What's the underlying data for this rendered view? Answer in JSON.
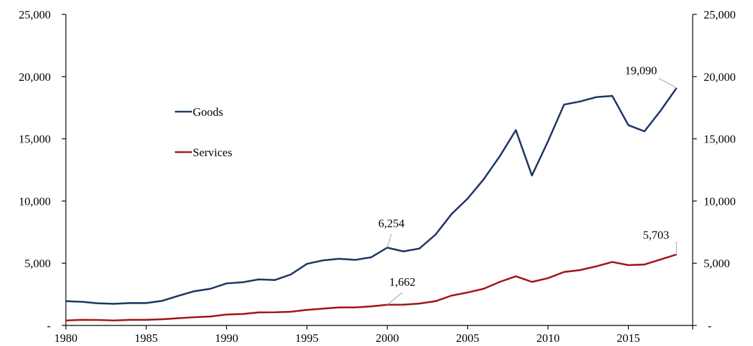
{
  "chart_data": {
    "type": "line",
    "title": "",
    "xlabel": "",
    "ylabel": "",
    "x": [
      1980,
      1981,
      1982,
      1983,
      1984,
      1985,
      1986,
      1987,
      1988,
      1989,
      1990,
      1991,
      1992,
      1993,
      1994,
      1995,
      1996,
      1997,
      1998,
      1999,
      2000,
      2001,
      2002,
      2003,
      2004,
      2005,
      2006,
      2007,
      2008,
      2009,
      2010,
      2011,
      2012,
      2013,
      2014,
      2015,
      2016,
      2017,
      2018
    ],
    "xlim": [
      1980,
      2019
    ],
    "ylim": [
      0,
      25000
    ],
    "grid": false,
    "legend_position": "upper-left",
    "x_ticks": [
      {
        "value": 1980,
        "label": "1980"
      },
      {
        "value": 1985,
        "label": "1985"
      },
      {
        "value": 1990,
        "label": "1990"
      },
      {
        "value": 1995,
        "label": "1995"
      },
      {
        "value": 2000,
        "label": "2000"
      },
      {
        "value": 2005,
        "label": "2005"
      },
      {
        "value": 2010,
        "label": "2010"
      },
      {
        "value": 2015,
        "label": "2015"
      }
    ],
    "y_ticks": [
      {
        "value": 0,
        "label": "-"
      },
      {
        "value": 5000,
        "label": "5,000"
      },
      {
        "value": 10000,
        "label": "10,000"
      },
      {
        "value": 15000,
        "label": "15,000"
      },
      {
        "value": 20000,
        "label": "20,000"
      },
      {
        "value": 25000,
        "label": "25,000"
      }
    ],
    "series": [
      {
        "name": "Goods",
        "color": "#1f3564",
        "values": [
          1950,
          1900,
          1780,
          1740,
          1800,
          1800,
          1980,
          2380,
          2750,
          2950,
          3380,
          3470,
          3700,
          3650,
          4100,
          4950,
          5230,
          5360,
          5270,
          5480,
          6254,
          5950,
          6180,
          7300,
          8950,
          10200,
          11750,
          13600,
          15700,
          12050,
          14800,
          17750,
          18000,
          18350,
          18450,
          16100,
          15600,
          17250,
          19090
        ]
      },
      {
        "name": "Services",
        "color": "#a31515",
        "values": [
          400,
          450,
          440,
          400,
          450,
          450,
          500,
          580,
          660,
          720,
          880,
          920,
          1050,
          1060,
          1100,
          1250,
          1350,
          1450,
          1450,
          1530,
          1662,
          1670,
          1760,
          1950,
          2400,
          2650,
          2950,
          3500,
          3950,
          3500,
          3800,
          4300,
          4450,
          4750,
          5100,
          4850,
          4900,
          5300,
          5703
        ]
      }
    ],
    "annotations": [
      {
        "series": "Goods",
        "x": 2000,
        "y": 6254,
        "text": "6,254"
      },
      {
        "series": "Goods",
        "x": 2018,
        "y": 19090,
        "text": "19,090"
      },
      {
        "series": "Services",
        "x": 2000,
        "y": 1662,
        "text": "1,662"
      },
      {
        "series": "Services",
        "x": 2018,
        "y": 5703,
        "text": "5,703"
      }
    ]
  }
}
